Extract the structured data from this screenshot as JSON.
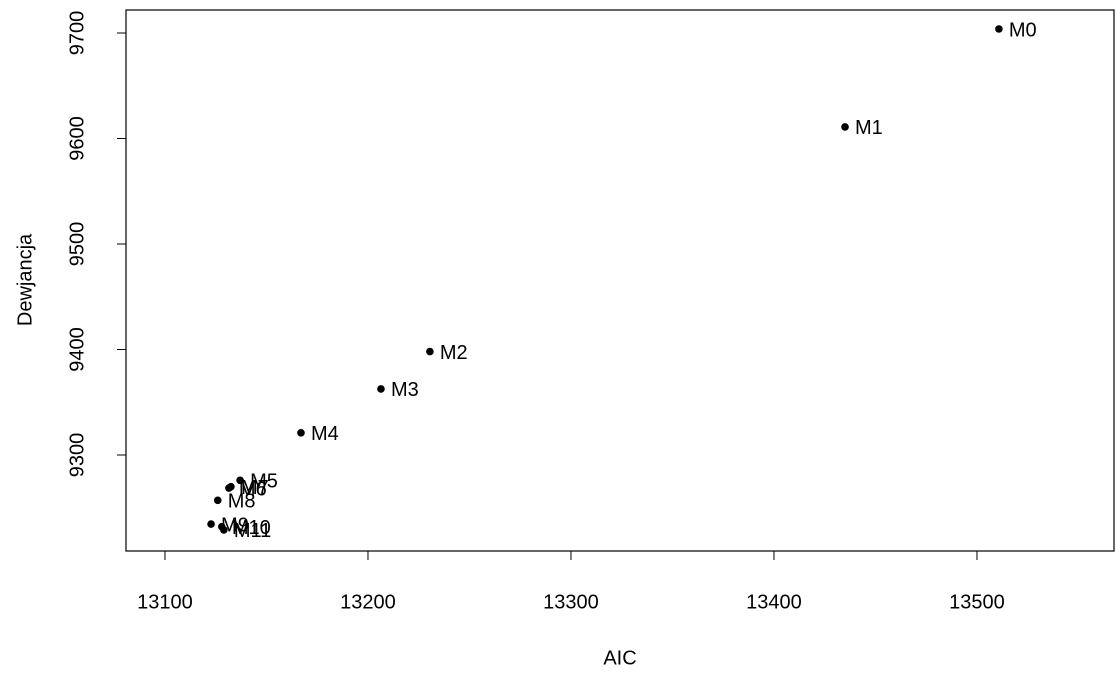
{
  "chart_data": {
    "type": "scatter",
    "x_label": "AIC",
    "y_label": "Dewjancja",
    "point_labels": [
      "M0",
      "M1",
      "M2",
      "M3",
      "M4",
      "M5",
      "M6",
      "M7",
      "M8",
      "M9",
      "M10",
      "M11"
    ],
    "x": [
      13510.8,
      13435,
      13230.5,
      13206.4,
      13167,
      13137,
      13131.5,
      13132.5,
      13126,
      13122.7,
      13128,
      13129
    ],
    "values": [
      9703.8,
      9611,
      9398,
      9362.6,
      9321,
      9276,
      9268.7,
      9270,
      9257,
      9234.5,
      9232,
      9229
    ],
    "color": "#000000",
    "xlim": [
      13080.8,
      13567.5
    ],
    "xticks": [
      13100,
      13200,
      13300,
      13400,
      13500
    ],
    "ylim": [
      9209,
      9721.8
    ],
    "yticks": [
      9300,
      9400,
      9500,
      9600,
      9700
    ]
  }
}
